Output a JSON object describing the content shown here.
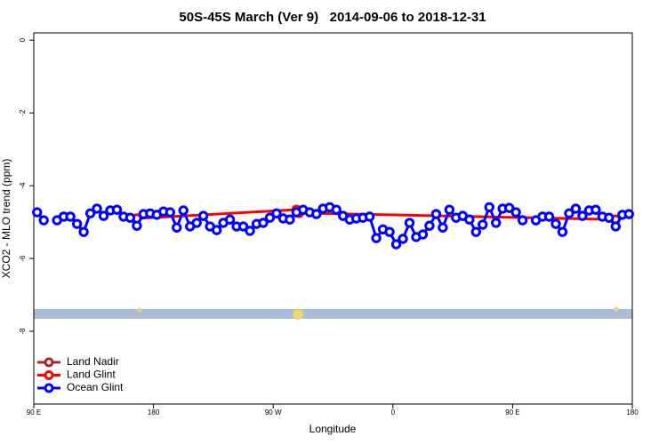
{
  "chart_data": {
    "type": "line",
    "title": "50S-45S March (Ver 9)   2014-09-06 to 2018-12-31",
    "xlabel": "Longitude",
    "ylabel": "XCO2 - MLO trend (ppm)",
    "xlim": [
      90,
      540
    ],
    "ylim": [
      -10,
      0.2
    ],
    "xticks": [
      {
        "value": 90,
        "label": "90 E"
      },
      180,
      {
        "value": 270,
        "label": "90 W"
      },
      {
        "value": 360,
        "label": "0"
      },
      {
        "value": 450,
        "label": "90 E"
      },
      {
        "value": 540,
        "label": "180"
      }
    ],
    "yticks": [
      0,
      -2,
      -4,
      -6,
      -8
    ],
    "legend": "bottomleft",
    "series": [
      {
        "name": "Land Nadir",
        "color": "#a52a2a",
        "x": [],
        "values": []
      },
      {
        "name": "Land Glint",
        "color": "#ff0000",
        "x": [
          167.5,
          287.5,
          289.5,
          527.5
        ],
        "values": [
          -4.9,
          -4.66,
          -4.75,
          -4.93
        ]
      },
      {
        "name": "Ocean Glint",
        "color": "#0000ff",
        "x": [
          92.5,
          97.5,
          102.5,
          107.5,
          112.5,
          117.5,
          122.5,
          127.5,
          132.5,
          137.5,
          142.5,
          147.5,
          152.5,
          157.5,
          162.5,
          167.5,
          172.5,
          177.5,
          182.5,
          187.5,
          192.5,
          197.5,
          202.5,
          207.5,
          212.5,
          217.5,
          222.5,
          227.5,
          232.5,
          237.5,
          242.5,
          247.5,
          252.5,
          257.5,
          262.5,
          267.5,
          272.5,
          277.5,
          282.5,
          287.5,
          292.5,
          297.5,
          302.5,
          307.5,
          312.5,
          317.5,
          322.5,
          327.5,
          332.5,
          337.5,
          342.5,
          347.5,
          352.5,
          357.5,
          362.5,
          367.5,
          372.5,
          377.5,
          382.5,
          387.5,
          392.5,
          397.5,
          402.5,
          407.5,
          412.5,
          417.5,
          422.5,
          427.5,
          432.5,
          437.5,
          442.5,
          447.5,
          452.5,
          457.5,
          462.5,
          467.5,
          472.5,
          477.5,
          482.5,
          487.5,
          492.5,
          497.5,
          502.5,
          507.5,
          512.5,
          517.5,
          522.5,
          527.5,
          532.5,
          537.5
        ],
        "values": [
          -4.73,
          -4.95,
          null,
          -4.95,
          -4.85,
          -4.85,
          -5.05,
          -5.27,
          -4.76,
          -4.63,
          -4.83,
          -4.68,
          -4.66,
          -4.85,
          -4.88,
          -5.1,
          -4.78,
          -4.76,
          -4.8,
          -4.71,
          -4.73,
          -5.15,
          -4.68,
          -5.12,
          -5.02,
          -4.83,
          -5.12,
          -5.22,
          -5.02,
          -4.93,
          -5.12,
          -5.12,
          -5.24,
          -5.05,
          -5.02,
          -4.88,
          -4.76,
          -4.9,
          -4.93,
          -4.73,
          -4.66,
          -4.73,
          -4.78,
          -4.63,
          -4.59,
          -4.66,
          -4.83,
          -4.93,
          -4.9,
          -4.88,
          -4.85,
          -5.44,
          -5.2,
          -5.27,
          -5.61,
          -5.46,
          -5.02,
          -5.41,
          -5.34,
          -5.1,
          -4.78,
          -5.15,
          -4.66,
          -4.88,
          -4.83,
          -4.93,
          -5.27,
          -5.07,
          -4.59,
          -5.02,
          -4.63,
          -4.61,
          -4.73,
          -4.95,
          null,
          -4.95,
          -4.85,
          -4.85,
          -5.05,
          -5.27,
          -4.76,
          -4.63,
          -4.83,
          -4.68,
          -4.66,
          -4.85,
          -4.88,
          -5.12,
          -4.8,
          -4.78
        ]
      }
    ]
  }
}
